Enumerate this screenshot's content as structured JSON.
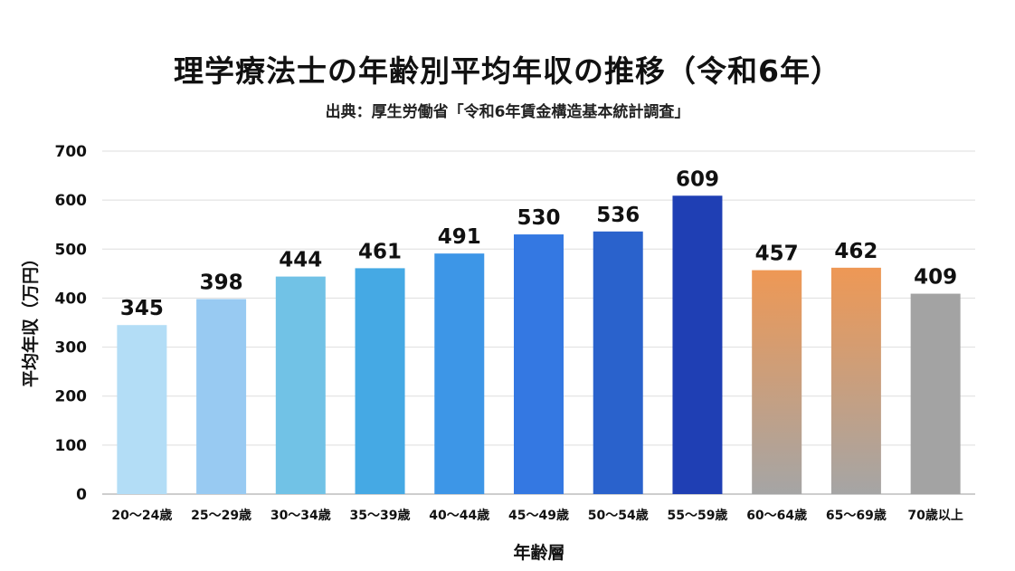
{
  "chart_data": {
    "type": "bar",
    "title": "理学療法士の年齢別平均年収の推移（令和6年）",
    "subtitle": "出典：厚生労働省「令和6年賃金構造基本統計調査」",
    "xlabel": "年齢層",
    "ylabel": "平均年収（万円）",
    "categories": [
      "20〜24歳",
      "25〜29歳",
      "30〜34歳",
      "35〜39歳",
      "40〜44歳",
      "45〜49歳",
      "50〜54歳",
      "55〜59歳",
      "60〜64歳",
      "65〜69歳",
      "70歳以上"
    ],
    "values": [
      345,
      398,
      444,
      461,
      491,
      530,
      536,
      609,
      457,
      462,
      409
    ],
    "ylim": [
      0,
      700
    ],
    "yticks": [
      0,
      100,
      200,
      300,
      400,
      500,
      600,
      700
    ],
    "grid": true,
    "bar_colors": [
      [
        "#b3ddf6",
        "#b3ddf6"
      ],
      [
        "#98caf2",
        "#98caf2"
      ],
      [
        "#71c2e6",
        "#71c2e6"
      ],
      [
        "#45a9e4",
        "#45a9e4"
      ],
      [
        "#3d96e7",
        "#3d96e7"
      ],
      [
        "#3478e2",
        "#3478e2"
      ],
      [
        "#2a62cc",
        "#2a62cc"
      ],
      [
        "#1f3fb4",
        "#1f3fb4"
      ],
      [
        "#ee9855",
        "#a5a5a5"
      ],
      [
        "#ee9855",
        "#a5a5a5"
      ],
      [
        "#a3a3a3",
        "#a3a3a3"
      ]
    ]
  }
}
